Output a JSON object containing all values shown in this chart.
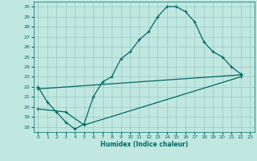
{
  "xlabel": "Humidex (Indice chaleur)",
  "bg_color": "#c0e8e0",
  "grid_color": "#98c8c0",
  "line_color": "#006868",
  "xlim": [
    -0.5,
    23.5
  ],
  "ylim": [
    17.5,
    30.5
  ],
  "xticks": [
    0,
    1,
    2,
    3,
    4,
    5,
    6,
    7,
    8,
    9,
    10,
    11,
    12,
    13,
    14,
    15,
    16,
    17,
    18,
    19,
    20,
    21,
    22,
    23
  ],
  "yticks": [
    18,
    19,
    20,
    21,
    22,
    23,
    24,
    25,
    26,
    27,
    28,
    29,
    30
  ],
  "line1_x": [
    0,
    1,
    2,
    3,
    4,
    5,
    6,
    7,
    8,
    9,
    10,
    11,
    12,
    13,
    14,
    15,
    16,
    17,
    18,
    19,
    20,
    21,
    22
  ],
  "line1_y": [
    22.0,
    20.5,
    19.5,
    18.5,
    17.8,
    18.3,
    21.0,
    22.5,
    23.0,
    24.8,
    25.5,
    26.7,
    27.5,
    29.0,
    30.0,
    30.0,
    29.5,
    28.5,
    26.5,
    25.5,
    25.0,
    24.0,
    23.3
  ],
  "line2_x": [
    0,
    22
  ],
  "line2_y": [
    21.8,
    23.2
  ],
  "line3_x": [
    0,
    3,
    5,
    22
  ],
  "line3_y": [
    19.8,
    19.5,
    18.2,
    23.0
  ],
  "marker": "+"
}
